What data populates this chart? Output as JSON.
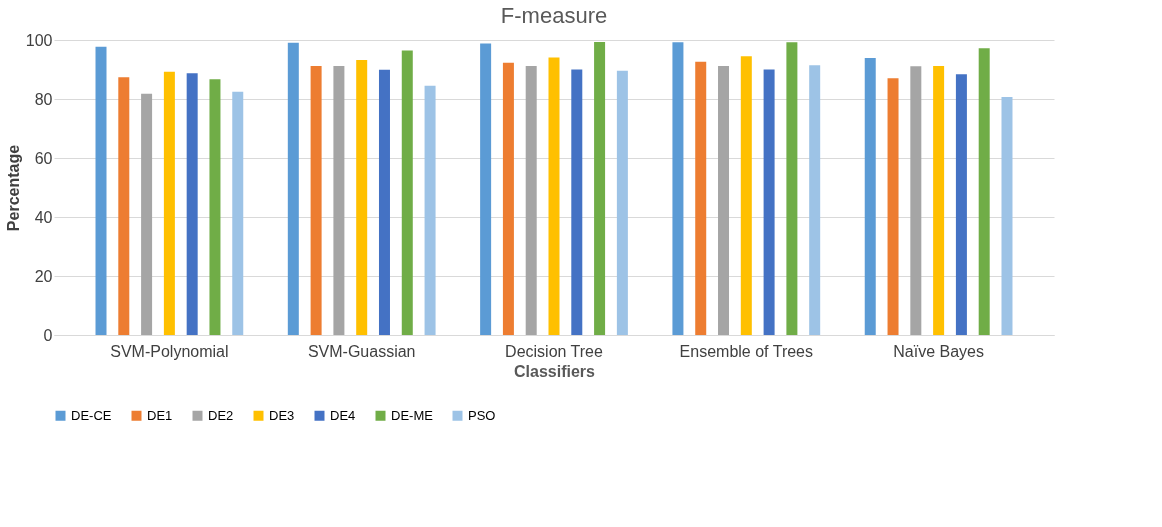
{
  "chart_data": {
    "type": "bar",
    "title": "F-measure",
    "xlabel": "Classifiers",
    "ylabel": "Percentage",
    "categories": [
      "SVM-Polynomial",
      "SVM-Guassian",
      "Decision Tree",
      "Ensemble of Trees",
      "Naïve Bayes"
    ],
    "series": [
      {
        "name": "DE-CE",
        "color": "#5b9bd5",
        "values": [
          97.7,
          99.1,
          98.8,
          99.2,
          93.9
        ]
      },
      {
        "name": "DE1",
        "color": "#ed7d31",
        "values": [
          87.4,
          91.2,
          92.3,
          92.6,
          87.0
        ]
      },
      {
        "name": "DE2",
        "color": "#a5a5a5",
        "values": [
          81.8,
          91.2,
          91.2,
          91.2,
          91.1
        ]
      },
      {
        "name": "DE3",
        "color": "#ffc000",
        "values": [
          89.2,
          93.2,
          94.1,
          94.5,
          91.2
        ]
      },
      {
        "name": "DE4",
        "color": "#4472c4",
        "values": [
          88.7,
          89.9,
          90.0,
          90.0,
          88.4
        ]
      },
      {
        "name": "DE-ME",
        "color": "#70ad47",
        "values": [
          86.7,
          96.4,
          99.3,
          99.2,
          97.2
        ]
      },
      {
        "name": "PSO",
        "color": "#9dc3e6",
        "values": [
          82.5,
          84.5,
          89.6,
          91.4,
          80.7
        ]
      }
    ],
    "ylim": [
      0,
      100
    ],
    "yticks": [
      0,
      20,
      40,
      60,
      80,
      100
    ],
    "grid": "y",
    "legend": "bottom"
  }
}
